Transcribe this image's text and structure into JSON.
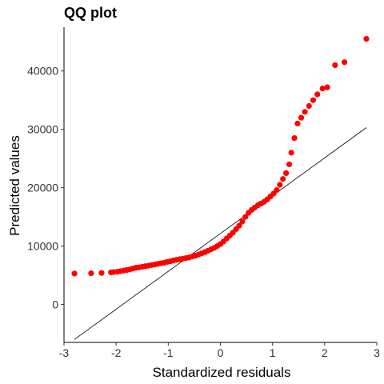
{
  "chart_data": {
    "type": "scatter",
    "title": "QQ plot",
    "xlabel": "Standardized residuals",
    "ylabel": "Predicted values",
    "xlim": [
      -3.0,
      3.0
    ],
    "ylim": [
      -6500,
      47500
    ],
    "xticks": [
      -3,
      -2,
      -1,
      0,
      1,
      2,
      3
    ],
    "yticks": [
      0,
      10000,
      20000,
      30000,
      40000
    ],
    "xtick_labels": [
      "-3",
      "-2",
      "-1",
      "0",
      "1",
      "2",
      "3"
    ],
    "ytick_labels": [
      "0",
      "10000",
      "20000",
      "30000",
      "40000"
    ],
    "grid": false,
    "point_color": "#ff0000",
    "reference_line": {
      "x": [
        -2.8,
        2.8
      ],
      "y": [
        -6000,
        30300
      ]
    },
    "points": [
      [
        -2.8,
        5300
      ],
      [
        -2.48,
        5350
      ],
      [
        -2.28,
        5400
      ],
      [
        -2.1,
        5500
      ],
      [
        -2.05,
        5550
      ],
      [
        -1.98,
        5600
      ],
      [
        -1.92,
        5700
      ],
      [
        -1.86,
        5800
      ],
      [
        -1.8,
        5900
      ],
      [
        -1.74,
        6000
      ],
      [
        -1.68,
        6150
      ],
      [
        -1.62,
        6300
      ],
      [
        -1.56,
        6350
      ],
      [
        -1.5,
        6450
      ],
      [
        -1.44,
        6550
      ],
      [
        -1.38,
        6650
      ],
      [
        -1.32,
        6750
      ],
      [
        -1.26,
        6850
      ],
      [
        -1.2,
        6950
      ],
      [
        -1.14,
        7050
      ],
      [
        -1.08,
        7150
      ],
      [
        -1.02,
        7300
      ],
      [
        -0.96,
        7400
      ],
      [
        -0.9,
        7550
      ],
      [
        -0.84,
        7650
      ],
      [
        -0.78,
        7750
      ],
      [
        -0.72,
        7850
      ],
      [
        -0.66,
        7950
      ],
      [
        -0.6,
        8050
      ],
      [
        -0.54,
        8200
      ],
      [
        -0.48,
        8350
      ],
      [
        -0.42,
        8550
      ],
      [
        -0.36,
        8750
      ],
      [
        -0.3,
        8950
      ],
      [
        -0.24,
        9200
      ],
      [
        -0.18,
        9450
      ],
      [
        -0.12,
        9700
      ],
      [
        -0.06,
        10000
      ],
      [
        0.0,
        10350
      ],
      [
        0.06,
        10800
      ],
      [
        0.12,
        11300
      ],
      [
        0.18,
        11800
      ],
      [
        0.24,
        12300
      ],
      [
        0.3,
        12900
      ],
      [
        0.36,
        13500
      ],
      [
        0.42,
        14200
      ],
      [
        0.48,
        15000
      ],
      [
        0.54,
        15700
      ],
      [
        0.6,
        16200
      ],
      [
        0.66,
        16600
      ],
      [
        0.72,
        17000
      ],
      [
        0.78,
        17300
      ],
      [
        0.84,
        17600
      ],
      [
        0.9,
        18000
      ],
      [
        0.96,
        18500
      ],
      [
        1.02,
        19000
      ],
      [
        1.08,
        19600
      ],
      [
        1.14,
        20500
      ],
      [
        1.2,
        21500
      ],
      [
        1.26,
        22500
      ],
      [
        1.32,
        24000
      ],
      [
        1.36,
        26000
      ],
      [
        1.42,
        28500
      ],
      [
        1.48,
        31000
      ],
      [
        1.55,
        32000
      ],
      [
        1.62,
        33000
      ],
      [
        1.7,
        34000
      ],
      [
        1.78,
        35000
      ],
      [
        1.86,
        36000
      ],
      [
        1.96,
        37000
      ],
      [
        2.05,
        37200
      ],
      [
        2.2,
        41000
      ],
      [
        2.38,
        41500
      ],
      [
        2.8,
        45500
      ]
    ]
  }
}
